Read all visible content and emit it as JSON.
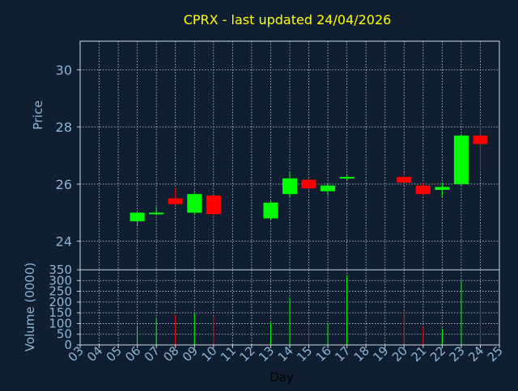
{
  "colors": {
    "background": "#0f1f31",
    "title": "#ffff00",
    "axis_text": "#8fb4d6",
    "frame": "#d0d8e0",
    "grid": "#c8d0d8",
    "up": "#00ff00",
    "down": "#ff0000"
  },
  "chart_data": [
    {
      "type": "candlestick",
      "title": "CPRX - last updated 24/04/2026",
      "ylabel": "Price",
      "ylim": [
        23,
        31
      ],
      "yticks": [
        24,
        26,
        28,
        30
      ],
      "grid": true,
      "candles": [
        {
          "day": "06",
          "open": 24.7,
          "close": 25.0,
          "high": 25.0,
          "low": 24.55
        },
        {
          "day": "07",
          "open": 24.95,
          "close": 25.0,
          "high": 25.2,
          "low": 24.9
        },
        {
          "day": "08",
          "open": 25.5,
          "close": 25.3,
          "high": 25.85,
          "low": 25.25
        },
        {
          "day": "09",
          "open": 25.0,
          "close": 25.65,
          "high": 25.7,
          "low": 24.95
        },
        {
          "day": "10",
          "open": 25.6,
          "close": 24.95,
          "high": 25.6,
          "low": 24.85
        },
        {
          "day": "13",
          "open": 24.8,
          "close": 25.35,
          "high": 25.4,
          "low": 24.75
        },
        {
          "day": "14",
          "open": 25.65,
          "close": 26.2,
          "high": 26.45,
          "low": 25.55
        },
        {
          "day": "15",
          "open": 26.15,
          "close": 25.85,
          "high": 26.2,
          "low": 25.75
        },
        {
          "day": "16",
          "open": 25.75,
          "close": 25.95,
          "high": 26.0,
          "low": 25.6
        },
        {
          "day": "17",
          "open": 26.2,
          "close": 26.25,
          "high": 26.3,
          "low": 26.15
        },
        {
          "day": "20",
          "open": 26.25,
          "close": 26.05,
          "high": 26.4,
          "low": 25.95
        },
        {
          "day": "21",
          "open": 25.95,
          "close": 25.65,
          "high": 26.05,
          "low": 25.6
        },
        {
          "day": "22",
          "open": 25.8,
          "close": 25.9,
          "high": 26.05,
          "low": 25.55
        },
        {
          "day": "23",
          "open": 26.0,
          "close": 27.7,
          "high": 27.75,
          "low": 25.95
        },
        {
          "day": "24",
          "open": 27.7,
          "close": 27.4,
          "high": 28.05,
          "low": 26.5
        }
      ]
    },
    {
      "type": "bar",
      "ylabel": "Volume (0000)",
      "xlabel": "Day",
      "ylim": [
        0,
        350
      ],
      "yticks": [
        0,
        50,
        100,
        150,
        200,
        250,
        300,
        350
      ],
      "categories": [
        "03",
        "04",
        "05",
        "06",
        "07",
        "08",
        "09",
        "10",
        "11",
        "12",
        "13",
        "14",
        "15",
        "16",
        "17",
        "18",
        "19",
        "20",
        "21",
        "22",
        "23",
        "24",
        "25"
      ],
      "volumes": [
        {
          "day": "06",
          "value": 90,
          "direction": "up"
        },
        {
          "day": "07",
          "value": 125,
          "direction": "up"
        },
        {
          "day": "08",
          "value": 140,
          "direction": "down"
        },
        {
          "day": "09",
          "value": 150,
          "direction": "up"
        },
        {
          "day": "10",
          "value": 135,
          "direction": "down"
        },
        {
          "day": "13",
          "value": 105,
          "direction": "up"
        },
        {
          "day": "14",
          "value": 220,
          "direction": "up"
        },
        {
          "day": "15",
          "value": 95,
          "direction": "down"
        },
        {
          "day": "16",
          "value": 100,
          "direction": "up"
        },
        {
          "day": "17",
          "value": 325,
          "direction": "up"
        },
        {
          "day": "20",
          "value": 155,
          "direction": "down"
        },
        {
          "day": "21",
          "value": 85,
          "direction": "down"
        },
        {
          "day": "22",
          "value": 75,
          "direction": "up"
        },
        {
          "day": "23",
          "value": 300,
          "direction": "up"
        },
        {
          "day": "24",
          "value": 195,
          "direction": "down"
        }
      ]
    }
  ]
}
